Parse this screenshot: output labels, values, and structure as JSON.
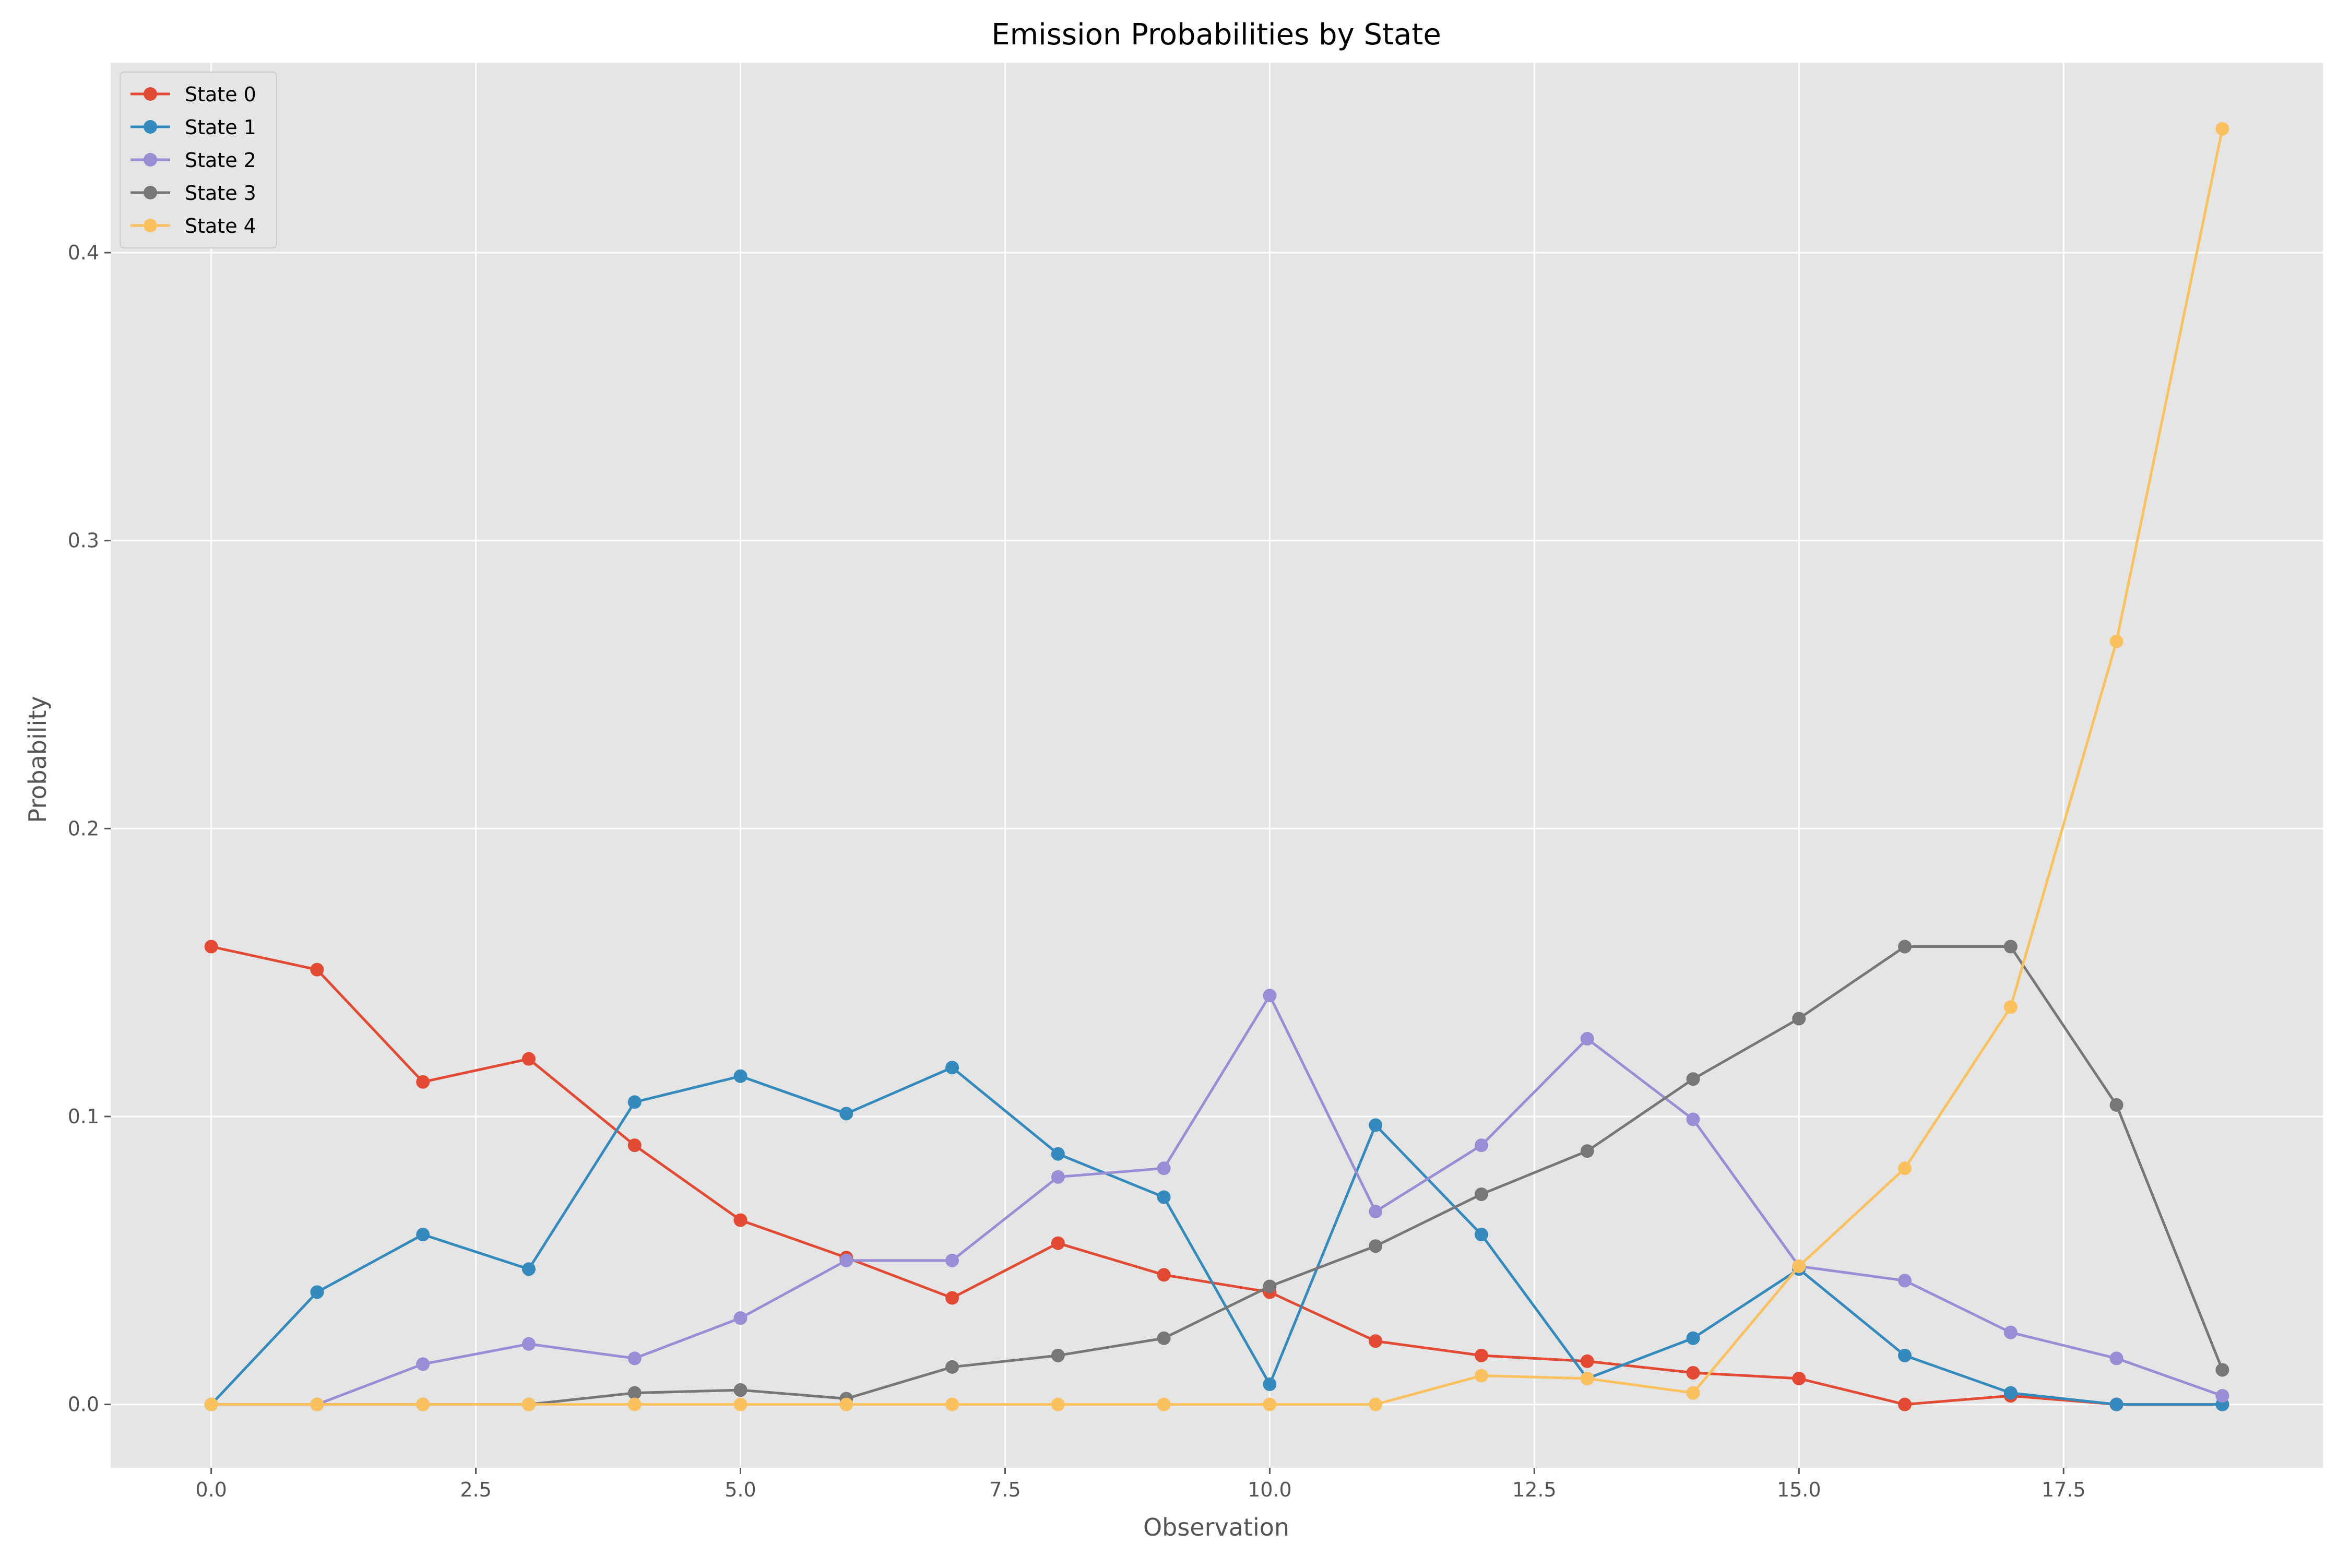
{
  "chart_data": {
    "type": "line",
    "title": "Emission Probabilities by State",
    "xlabel": "Observation",
    "ylabel": "Probability",
    "xlim": [
      -0.95,
      19.95
    ],
    "ylim": [
      -0.022,
      0.466
    ],
    "xticks": [
      0.0,
      2.5,
      5.0,
      7.5,
      10.0,
      12.5,
      15.0,
      17.5
    ],
    "xtick_labels": [
      "0.0",
      "2.5",
      "5.0",
      "7.5",
      "10.0",
      "12.5",
      "15.0",
      "17.5"
    ],
    "yticks": [
      0.0,
      0.1,
      0.2,
      0.3,
      0.4
    ],
    "ytick_labels": [
      "0.0",
      "0.1",
      "0.2",
      "0.3",
      "0.4"
    ],
    "grid": true,
    "legend_position": "top-left",
    "x": [
      0,
      1,
      2,
      3,
      4,
      5,
      6,
      7,
      8,
      9,
      10,
      11,
      12,
      13,
      14,
      15,
      16,
      17,
      18,
      19
    ],
    "series": [
      {
        "name": "State 0",
        "color": "#E24A33",
        "values": [
          0.159,
          0.151,
          0.112,
          0.12,
          0.09,
          0.064,
          0.051,
          0.037,
          0.056,
          0.045,
          0.039,
          0.022,
          0.017,
          0.015,
          0.011,
          0.009,
          0.0,
          0.003,
          0.0,
          0.0
        ]
      },
      {
        "name": "State 1",
        "color": "#348ABD",
        "values": [
          0.0,
          0.039,
          0.059,
          0.047,
          0.105,
          0.114,
          0.101,
          0.117,
          0.087,
          0.072,
          0.007,
          0.097,
          0.059,
          0.009,
          0.023,
          0.047,
          0.017,
          0.004,
          0.0,
          0.0
        ]
      },
      {
        "name": "State 2",
        "color": "#988ED5",
        "values": [
          0.0,
          0.0,
          0.014,
          0.021,
          0.016,
          0.03,
          0.05,
          0.05,
          0.079,
          0.082,
          0.142,
          0.067,
          0.09,
          0.127,
          0.099,
          0.048,
          0.043,
          0.025,
          0.016,
          0.003
        ]
      },
      {
        "name": "State 3",
        "color": "#777777",
        "values": [
          0.0,
          0.0,
          0.0,
          0.0,
          0.004,
          0.005,
          0.002,
          0.013,
          0.017,
          0.023,
          0.041,
          0.055,
          0.073,
          0.088,
          0.113,
          0.134,
          0.159,
          0.159,
          0.104,
          0.012
        ]
      },
      {
        "name": "State 4",
        "color": "#FBC15E",
        "values": [
          0.0,
          0.0,
          0.0,
          0.0,
          0.0,
          0.0,
          0.0,
          0.0,
          0.0,
          0.0,
          0.0,
          0.0,
          0.01,
          0.009,
          0.004,
          0.048,
          0.082,
          0.138,
          0.265,
          0.443
        ]
      }
    ],
    "colors": {
      "plot_background": "#E5E5E5",
      "grid": "#FFFFFF",
      "tick_text": "#555555",
      "title_text": "#000000"
    }
  }
}
